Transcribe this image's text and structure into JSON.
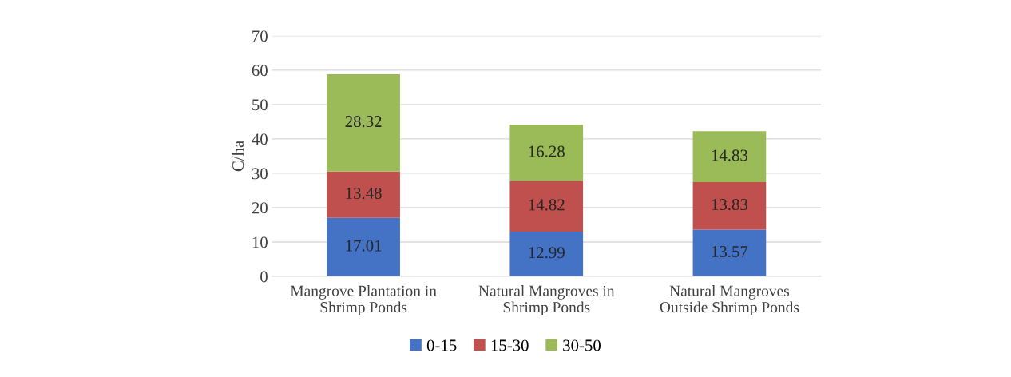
{
  "chart_data": {
    "type": "bar",
    "stacked": true,
    "ylabel": "C/ha",
    "categories": [
      "Mangrove Plantation in Shrimp Ponds",
      "Natural Mangroves in Shrimp Ponds",
      "Natural Mangroves Outside Shrimp Ponds"
    ],
    "series": [
      {
        "name": "0-15",
        "color": "#4472c4",
        "values": [
          17.01,
          12.99,
          13.57
        ]
      },
      {
        "name": "15-30",
        "color": "#c0504d",
        "values": [
          13.48,
          14.82,
          13.83
        ]
      },
      {
        "name": "30-50",
        "color": "#9bbb59",
        "values": [
          28.32,
          16.28,
          14.83
        ]
      }
    ],
    "ylim": [
      0,
      70
    ],
    "yticks": [
      0,
      10,
      20,
      30,
      40,
      50,
      60,
      70
    ],
    "grid": "y",
    "legend": "bottom",
    "data_labels": true
  }
}
